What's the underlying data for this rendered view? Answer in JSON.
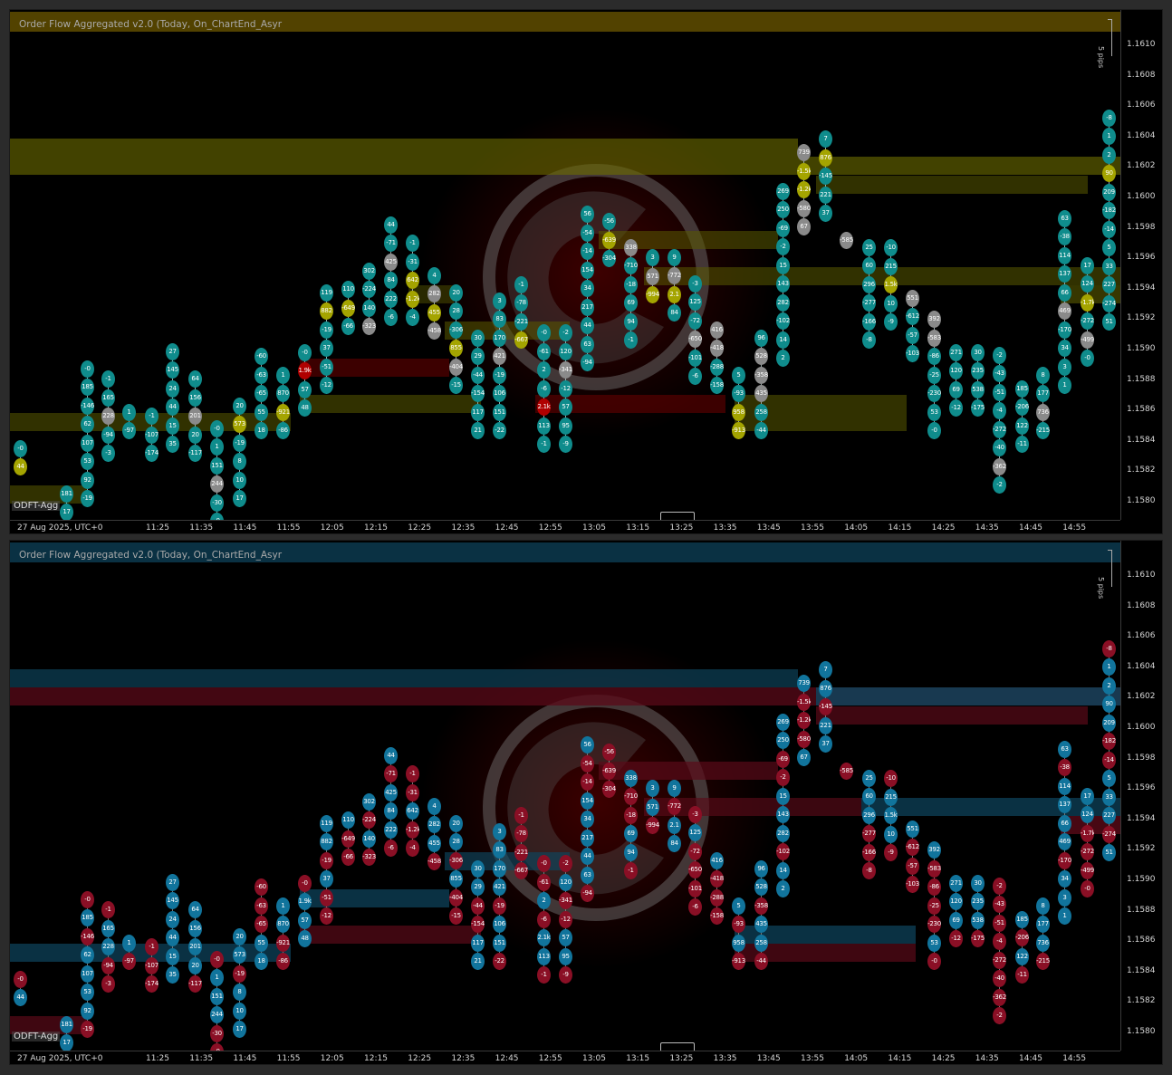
{
  "indicator_title": "Order Flow Aggregated v2.0 (Today, On_ChartEnd_Asyr",
  "chart_tag": "ODFT-Agg",
  "date_label": "27 Aug 2025, UTC+0",
  "pips_label": "5 pips",
  "x_ticks": [
    "11:25",
    "11:35",
    "11:45",
    "11:55",
    "12:05",
    "12:15",
    "12:25",
    "12:35",
    "12:45",
    "12:55",
    "13:05",
    "13:15",
    "13:25",
    "13:35",
    "13:45",
    "13:55",
    "14:05",
    "14:15",
    "14:25",
    "14:35",
    "14:45",
    "14:55"
  ],
  "y_ticks": [
    "1.1610",
    "1.1608",
    "1.1606",
    "1.1604",
    "1.1602",
    "1.1600",
    "1.1598",
    "1.1596",
    "1.1594",
    "1.1592",
    "1.1590",
    "1.1588",
    "1.1586",
    "1.1584",
    "1.1582",
    "1.1580"
  ],
  "colors": {
    "top_pos": "#0f8c8c",
    "top_neg": "#0f8c8c",
    "top_hl_yellow": "#a4a400",
    "top_hl_gray": "#8a8a8a",
    "bottom_pos": "#11749c",
    "bottom_neg": "#8a0f25",
    "top_band": "#6f6f00",
    "bottom_band_blue": "#0e4660",
    "bottom_band_red": "#5a0a18"
  },
  "columns": [
    {
      "time": "11:09",
      "cells": [
        "44",
        "-0"
      ]
    },
    {
      "time": "11:11",
      "cells": [
        "17",
        "181"
      ]
    },
    {
      "time": "11:14",
      "cells": [
        "-19",
        "92",
        "53",
        "107",
        "62",
        "-146",
        "185",
        "-0"
      ]
    },
    {
      "time": "11:16",
      "cells": [
        "-3",
        "-94",
        "228",
        "165",
        "-1"
      ]
    },
    {
      "time": "11:19",
      "cells": [
        "-97",
        "1"
      ]
    },
    {
      "time": "11:21",
      "cells": [
        "-174",
        "-107",
        "-1"
      ]
    },
    {
      "time": "11:24",
      "cells": [
        "35",
        "15",
        "44",
        "24",
        "145",
        "27"
      ]
    },
    {
      "time": "11:26",
      "cells": [
        "-117",
        "20",
        "201",
        "156",
        "64"
      ]
    },
    {
      "time": "11:29",
      "cells": [
        "-0",
        "-30",
        "244",
        "151",
        "1",
        "-0"
      ]
    },
    {
      "time": "11:31",
      "cells": [
        "17",
        "10",
        "8",
        "-19",
        "573",
        "20"
      ]
    },
    {
      "time": "11:34",
      "cells": [
        "18",
        "55",
        "-65",
        "-63",
        "-60"
      ]
    },
    {
      "time": "11:36",
      "cells": [
        "-86",
        "-921",
        "870",
        "1"
      ]
    },
    {
      "time": "11:39",
      "cells": [
        "48",
        "57",
        "1.9k",
        "-0"
      ]
    },
    {
      "time": "11:41",
      "cells": [
        "-12",
        "-51",
        "37",
        "-19",
        "882",
        "119"
      ]
    },
    {
      "time": "11:44",
      "cells": [
        "-66",
        "-649",
        "110"
      ]
    },
    {
      "time": "11:46",
      "cells": [
        "-323",
        "140",
        "-224",
        "302"
      ]
    },
    {
      "time": "11:49",
      "cells": [
        "-6",
        "222",
        "84",
        "425",
        "-71",
        "44"
      ]
    },
    {
      "time": "11:51",
      "cells": [
        "-4",
        "-1.2k",
        "642",
        "-31",
        "-1"
      ]
    },
    {
      "time": "11:54",
      "cells": [
        "-458",
        "455",
        "282",
        "4"
      ]
    },
    {
      "time": "11:56",
      "cells": [
        "-15",
        "-404",
        "855",
        "-306",
        "28",
        "20"
      ]
    },
    {
      "time": "11:59",
      "cells": [
        "21",
        "117",
        "-154",
        "-44",
        "29",
        "30"
      ]
    },
    {
      "time": "12:01",
      "cells": [
        "-22",
        "151",
        "106",
        "-19",
        "421",
        "170",
        "83",
        "3"
      ]
    },
    {
      "time": "12:04",
      "cells": [
        "-667",
        "-221",
        "-78",
        "-1"
      ]
    },
    {
      "time": "12:06",
      "cells": [
        "-1",
        "113",
        "2.1k",
        "-6",
        "2",
        "-61",
        "-0"
      ]
    },
    {
      "time": "12:09",
      "cells": [
        "-9",
        "95",
        "57",
        "-12",
        "-341",
        "120",
        "-2"
      ]
    },
    {
      "time": "12:11",
      "cells": [
        "-94",
        "63",
        "44",
        "217",
        "34",
        "154",
        "-14",
        "-54",
        "56"
      ]
    },
    {
      "time": "12:14",
      "cells": [
        "-304",
        "-639",
        "-56"
      ]
    },
    {
      "time": "12:16",
      "cells": [
        "-1",
        "94",
        "69",
        "-18",
        "-710",
        "338"
      ]
    },
    {
      "time": "12:19",
      "cells": [
        "-994",
        "571",
        "3"
      ]
    },
    {
      "time": "12:21",
      "cells": [
        "84",
        "2.1",
        "-772",
        "9"
      ]
    },
    {
      "time": "12:24",
      "cells": [
        "-6",
        "-101",
        "-650",
        "-72",
        "125",
        "-3"
      ]
    },
    {
      "time": "12:26",
      "cells": [
        "-158",
        "-288",
        "-418",
        "416"
      ]
    },
    {
      "time": "12:29",
      "cells": [
        "-913",
        "958",
        "-93",
        "5"
      ]
    },
    {
      "time": "12:31",
      "cells": [
        "-44",
        "258",
        "435",
        "-358",
        "528",
        "96"
      ]
    },
    {
      "time": "12:34",
      "cells": [
        "2",
        "14",
        "-102",
        "282",
        "143",
        "15",
        "-2",
        "-69",
        "250",
        "269"
      ]
    },
    {
      "time": "12:36",
      "cells": [
        "67",
        "-580",
        "-1.2k",
        "-1.5k",
        "739"
      ]
    },
    {
      "time": "12:39",
      "cells": [
        "37",
        "221",
        "-145",
        "876",
        "7"
      ]
    },
    {
      "time": "12:41",
      "cells": [
        "-585"
      ]
    },
    {
      "time": "12:44",
      "cells": [
        "-8",
        "-166",
        "-277",
        "296",
        "60",
        "25"
      ]
    },
    {
      "time": "12:46",
      "cells": [
        "-9",
        "10",
        "1.5k",
        "215",
        "-10"
      ]
    },
    {
      "time": "12:49",
      "cells": [
        "-103",
        "-57",
        "-612",
        "551"
      ]
    },
    {
      "time": "12:51",
      "cells": [
        "-0",
        "53",
        "-230",
        "-25",
        "-86",
        "-583",
        "392"
      ]
    },
    {
      "time": "12:54",
      "cells": [
        "-12",
        "69",
        "120",
        "271"
      ]
    },
    {
      "time": "12:56",
      "cells": [
        "-175",
        "538",
        "235",
        "30"
      ]
    },
    {
      "time": "12:59",
      "cells": [
        "-2",
        "-362",
        "-40",
        "-272",
        "-4",
        "-51",
        "-43",
        "-2"
      ]
    },
    {
      "time": "13:01",
      "cells": [
        "-11",
        "122",
        "-206",
        "185"
      ]
    },
    {
      "time": "13:04",
      "cells": [
        "-215",
        "736",
        "177",
        "8"
      ]
    },
    {
      "time": "13:06",
      "cells": [
        "1",
        "3",
        "34",
        "-170",
        "469",
        "66",
        "137",
        "114",
        "-38",
        "63"
      ]
    },
    {
      "time": "13:09",
      "cells": [
        "-0",
        "-499",
        "-272",
        "-1.7k",
        "124",
        "17"
      ]
    },
    {
      "time": "13:11",
      "cells": [
        "51",
        "-274",
        "227",
        "33",
        "5",
        "-14",
        "-182",
        "209",
        "90",
        "2",
        "1",
        "-8"
      ]
    },
    {
      "time": "13:14",
      "cells": [
        "-1",
        "882",
        "319",
        "-714",
        "-11",
        "26"
      ]
    },
    {
      "time": "13:16",
      "cells": [
        "1"
      ]
    }
  ]
}
